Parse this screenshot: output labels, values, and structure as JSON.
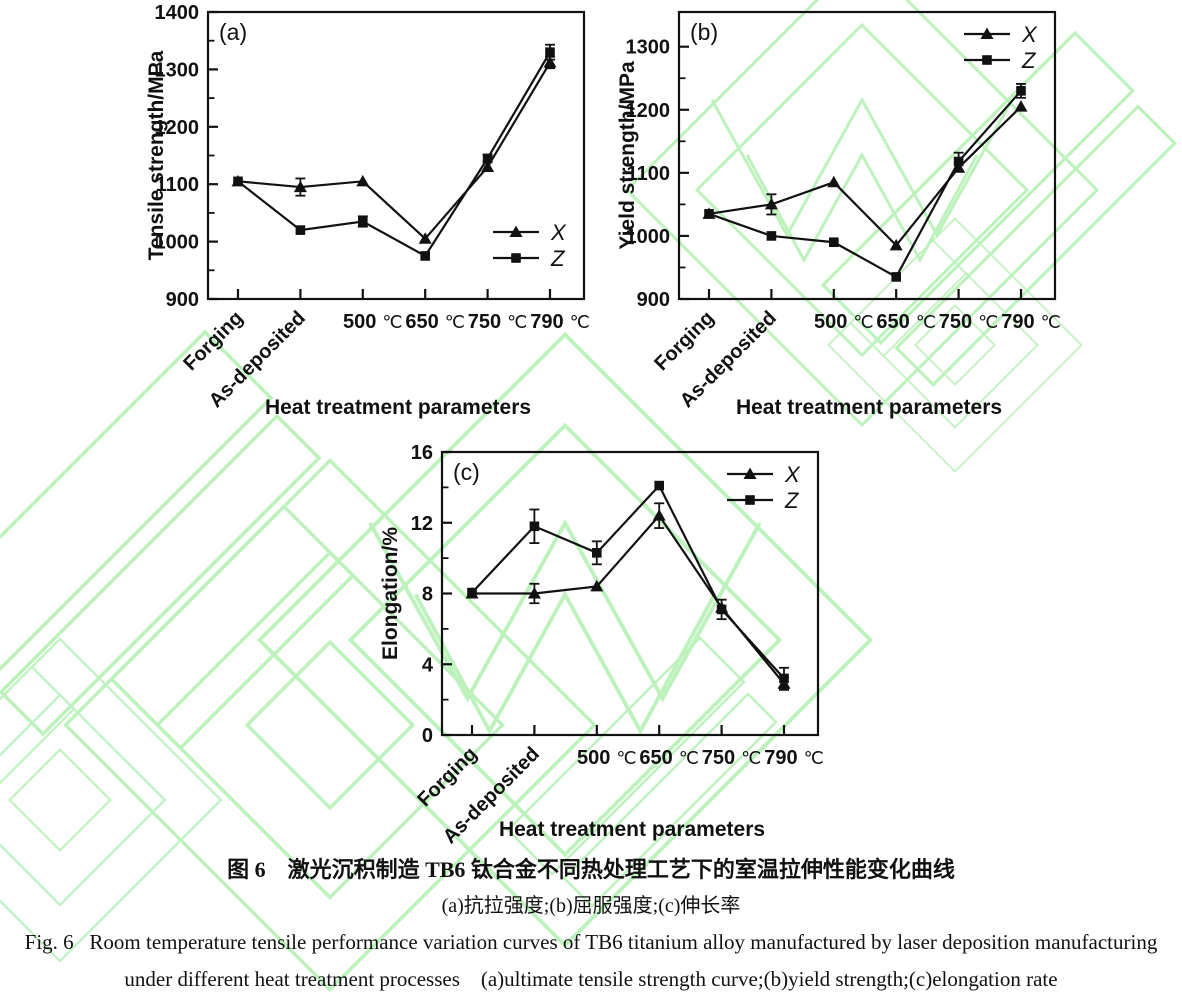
{
  "page": {
    "background": "#ffffff",
    "watermark_color": "#bdf2bd",
    "ink_color": "#111111"
  },
  "caption": {
    "line1_zh": "图 6　激光沉积制造 TB6 钛合金不同热处理工艺下的室温拉伸性能变化曲线",
    "line2_zh": "(a)抗拉强度;(b)屈服强度;(c)伸长率",
    "line3_en": "Fig. 6   Room temperature tensile performance variation curves of TB6 titanium alloy manufactured by laser deposition manufacturing",
    "line4_en": "under different heat treatment processes    (a)ultimate tensile strength curve;(b)yield strength;(c)elongation rate"
  },
  "chart_data": [
    {
      "type": "line",
      "panel": "(a)",
      "ylabel": "Tensile strength/MPa",
      "xlabel": "Heat treatment parameters",
      "ylim": [
        900,
        1400
      ],
      "yticks": [
        900,
        1000,
        1100,
        1200,
        1300,
        1400
      ],
      "y_minor_step": 50,
      "categories": [
        "Forging",
        "As-deposited",
        "500 ℃",
        "650 ℃",
        "750 ℃",
        "790 ℃"
      ],
      "rotated_categories": 2,
      "grid": false,
      "legend_position": "bottom-right",
      "series": [
        {
          "name": "X",
          "marker": "triangle",
          "values": [
            1105,
            1095,
            1105,
            1005,
            1130,
            1312
          ],
          "errors": [
            0,
            15,
            0,
            0,
            0,
            10
          ]
        },
        {
          "name": "Z",
          "marker": "square",
          "values": [
            1105,
            1020,
            1035,
            975,
            1145,
            1330
          ],
          "errors": [
            0,
            0,
            9,
            0,
            6,
            13
          ]
        }
      ]
    },
    {
      "type": "line",
      "panel": "(b)",
      "ylabel": "Yield strength/MPa",
      "xlabel": "Heat treatment parameters",
      "ylim": [
        900,
        1355
      ],
      "yticks": [
        900,
        1000,
        1100,
        1200,
        1300
      ],
      "y_minor_step": 50,
      "categories": [
        "Forging",
        "As-deposited",
        "500 ℃",
        "650 ℃",
        "750 ℃",
        "790 ℃"
      ],
      "rotated_categories": 2,
      "grid": false,
      "legend_position": "top-right",
      "series": [
        {
          "name": "X",
          "marker": "triangle",
          "values": [
            1035,
            1050,
            1085,
            985,
            1108,
            1205
          ],
          "errors": [
            0,
            16,
            0,
            0,
            0,
            0
          ]
        },
        {
          "name": "Z",
          "marker": "square",
          "values": [
            1035,
            1000,
            990,
            935,
            1118,
            1230
          ],
          "errors": [
            0,
            0,
            0,
            0,
            14,
            11
          ]
        }
      ]
    },
    {
      "type": "line",
      "panel": "(c)",
      "ylabel": "Elongation/%",
      "xlabel": "Heat treatment parameters",
      "ylim": [
        0,
        16
      ],
      "yticks": [
        0,
        4,
        8,
        12,
        16
      ],
      "y_minor_step": 2,
      "categories": [
        "Forging",
        "As-deposited",
        "500 ℃",
        "650 ℃",
        "750 ℃",
        "790 ℃"
      ],
      "rotated_categories": 2,
      "grid": false,
      "legend_position": "top-right",
      "series": [
        {
          "name": "X",
          "marker": "triangle",
          "values": [
            8.0,
            8.0,
            8.4,
            12.4,
            7.2,
            2.9
          ],
          "errors": [
            0,
            0.55,
            0,
            0.7,
            0,
            0.35
          ]
        },
        {
          "name": "Z",
          "marker": "square",
          "values": [
            8.05,
            11.8,
            10.3,
            14.1,
            7.1,
            3.2
          ],
          "errors": [
            0,
            0.95,
            0.65,
            0,
            0.55,
            0.6
          ]
        }
      ]
    }
  ]
}
